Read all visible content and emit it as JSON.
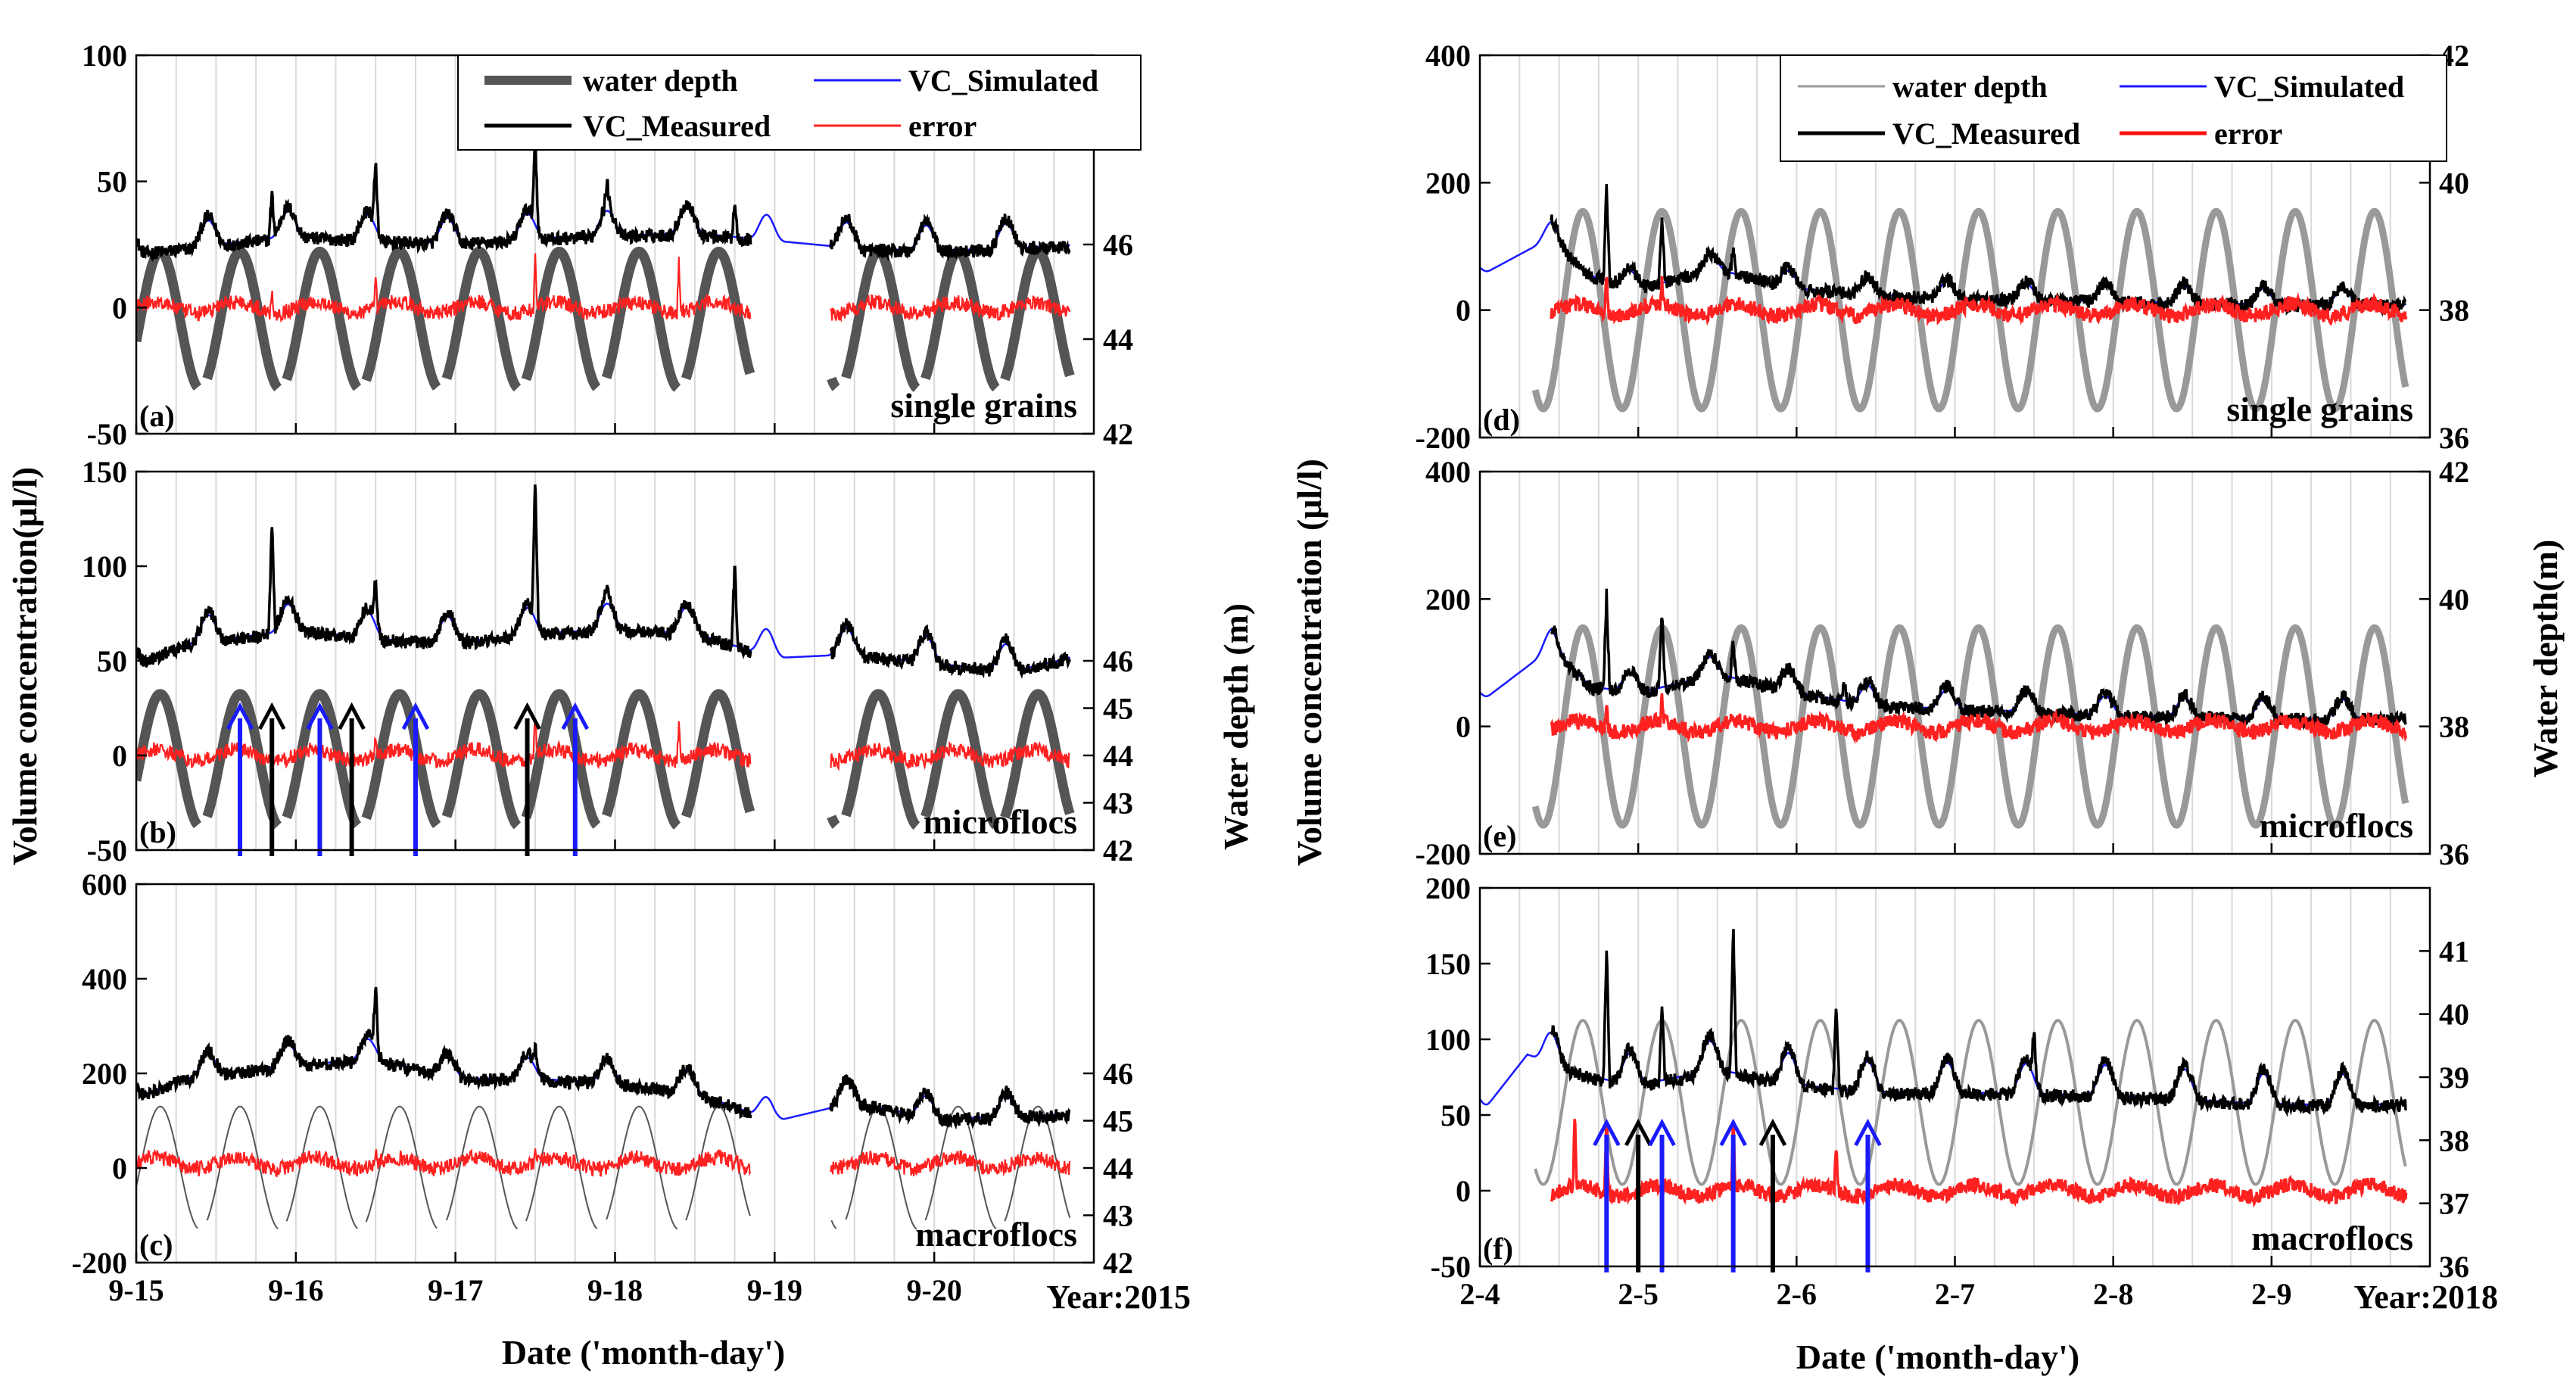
{
  "figure": {
    "left_ylabel_2015": "Volume concentration(μl/l)",
    "right_ylabel_2015": "Water depth (m)",
    "left_ylabel_2018": "Volume concentration (μl/l)",
    "right_ylabel_2018": "Water depth(m)",
    "xlabel_2015": "Date ('month-day')",
    "xlabel_2018": "Date ('month-day')",
    "year_2015": "Year:2015",
    "year_2018": "Year:2018"
  },
  "legend_2015": [
    {
      "key": "depth",
      "label": "water depth",
      "color": "#555555"
    },
    {
      "key": "sim",
      "label": "VC_Simulated",
      "color": "#1a1aff"
    },
    {
      "key": "meas",
      "label": "VC_Measured",
      "color": "#000000"
    },
    {
      "key": "err",
      "label": "error",
      "color": "#ff2020"
    }
  ],
  "legend_2018": [
    {
      "key": "depth",
      "label": "water depth",
      "color": "#999999"
    },
    {
      "key": "sim",
      "label": "VC_Simulated",
      "color": "#1a1aff"
    },
    {
      "key": "meas",
      "label": "VC_Measured",
      "color": "#000000"
    },
    {
      "key": "err",
      "label": "error",
      "color": "#ff1010"
    }
  ],
  "chart_data": [
    {
      "type": "line",
      "id": "a",
      "panel_label": "(a)",
      "title": "single grains",
      "x_range": [
        0,
        6
      ],
      "x_ticks": [
        0,
        1,
        2,
        3,
        4,
        5
      ],
      "x_tick_labels": [
        "9-15",
        "9-16",
        "9-17",
        "9-18",
        "9-19",
        "9-20"
      ],
      "show_x_tick_labels": false,
      "ylim": [
        -50,
        100
      ],
      "y_ticks": [
        -50,
        0,
        50,
        100
      ],
      "y2lim": [
        42,
        50
      ],
      "y2_ticks": [
        42,
        44,
        46
      ],
      "gap": [
        3.85,
        4.35
      ],
      "baseline_points": [
        [
          0,
          24
        ],
        [
          0.3,
          26
        ],
        [
          1,
          31
        ],
        [
          1.5,
          29
        ],
        [
          2,
          28
        ],
        [
          2.5,
          30
        ],
        [
          3,
          31
        ],
        [
          3.5,
          32
        ],
        [
          4,
          29
        ],
        [
          4.5,
          26
        ],
        [
          5,
          25
        ],
        [
          5.5,
          26
        ],
        [
          5.85,
          27
        ]
      ],
      "tidal_bump": 10,
      "meas_spikes": [
        [
          0.85,
          18
        ],
        [
          1.5,
          25
        ],
        [
          2.5,
          35
        ],
        [
          2.95,
          10
        ],
        [
          3.75,
          15
        ]
      ],
      "error_level": 0,
      "error_spikes": [
        [
          0.85,
          10
        ],
        [
          1.5,
          10
        ],
        [
          2.5,
          20
        ],
        [
          3.4,
          20
        ]
      ],
      "depth": {
        "mean": 44.4,
        "amp": 1.45,
        "thick": 13,
        "color": "#555555",
        "dashed": true
      },
      "arrows": []
    },
    {
      "type": "line",
      "id": "b",
      "panel_label": "(b)",
      "title": "microflocs",
      "x_range": [
        0,
        6
      ],
      "x_ticks": [
        0,
        1,
        2,
        3,
        4,
        5
      ],
      "x_tick_labels": [
        "9-15",
        "9-16",
        "9-17",
        "9-18",
        "9-19",
        "9-20"
      ],
      "show_x_tick_labels": false,
      "ylim": [
        -50,
        150
      ],
      "y_ticks": [
        -50,
        0,
        50,
        100,
        150
      ],
      "y2lim": [
        42,
        50
      ],
      "y2_ticks": [
        42,
        43,
        44,
        45,
        46
      ],
      "gap": [
        3.85,
        4.35
      ],
      "baseline_points": [
        [
          0,
          52
        ],
        [
          0.3,
          62
        ],
        [
          1,
          70
        ],
        [
          1.5,
          65
        ],
        [
          2,
          63
        ],
        [
          2.5,
          68
        ],
        [
          3,
          70
        ],
        [
          3.5,
          68
        ],
        [
          4,
          55
        ],
        [
          4.5,
          57
        ],
        [
          5,
          52
        ],
        [
          5.5,
          48
        ],
        [
          5.85,
          55
        ]
      ],
      "tidal_bump": 14,
      "meas_spikes": [
        [
          0.85,
          60
        ],
        [
          1.5,
          25
        ],
        [
          2.5,
          75
        ],
        [
          2.95,
          10
        ],
        [
          3.75,
          45
        ]
      ],
      "error_level": 0,
      "error_spikes": [
        [
          0.85,
          12
        ],
        [
          1.5,
          12
        ],
        [
          2.5,
          20
        ],
        [
          3.4,
          20
        ]
      ],
      "depth": {
        "mean": 43.9,
        "amp": 1.4,
        "thick": 13,
        "color": "#555555",
        "dashed": true
      },
      "arrows": [
        {
          "x": 0.65,
          "color": "blue"
        },
        {
          "x": 0.85,
          "color": "black"
        },
        {
          "x": 1.15,
          "color": "blue"
        },
        {
          "x": 1.35,
          "color": "black"
        },
        {
          "x": 1.75,
          "color": "blue"
        },
        {
          "x": 2.45,
          "color": "black"
        },
        {
          "x": 2.75,
          "color": "blue"
        }
      ]
    },
    {
      "type": "line",
      "id": "c",
      "panel_label": "(c)",
      "title": "macroflocs",
      "x_range": [
        0,
        6
      ],
      "x_ticks": [
        0,
        1,
        2,
        3,
        4,
        5
      ],
      "x_tick_labels": [
        "9-15",
        "9-16",
        "9-17",
        "9-18",
        "9-19",
        "9-20"
      ],
      "show_x_tick_labels": true,
      "ylim": [
        -200,
        600
      ],
      "y_ticks": [
        -200,
        0,
        200,
        400,
        600
      ],
      "y2lim": [
        42,
        50
      ],
      "y2_ticks": [
        42,
        43,
        44,
        45,
        46
      ],
      "gap": [
        3.85,
        4.35
      ],
      "baseline_points": [
        [
          0,
          160
        ],
        [
          0.3,
          200
        ],
        [
          1,
          230
        ],
        [
          1.5,
          240
        ],
        [
          2,
          200
        ],
        [
          2.5,
          200
        ],
        [
          3,
          190
        ],
        [
          3.5,
          170
        ],
        [
          4,
          110
        ],
        [
          4.5,
          150
        ],
        [
          5,
          115
        ],
        [
          5.5,
          120
        ],
        [
          5.85,
          125
        ]
      ],
      "tidal_bump": 45,
      "meas_spikes": [
        [
          1.5,
          130
        ],
        [
          2.5,
          40
        ]
      ],
      "error_level": 10,
      "error_spikes": [
        [
          1.5,
          20
        ],
        [
          2.5,
          25
        ]
      ],
      "depth": {
        "mean": 44.0,
        "amp": 1.3,
        "thick": 2,
        "color": "#555555",
        "dashed": true
      },
      "arrows": []
    },
    {
      "type": "line",
      "id": "d",
      "panel_label": "(d)",
      "title": "single grains",
      "x_range": [
        0,
        6
      ],
      "x_ticks": [
        0,
        1,
        2,
        3,
        4,
        5
      ],
      "x_tick_labels": [
        "2-4",
        "2-5",
        "2-6",
        "2-7",
        "2-8",
        "2-9"
      ],
      "show_x_tick_labels": false,
      "ylim": [
        -200,
        400
      ],
      "y_ticks": [
        -200,
        0,
        200,
        400
      ],
      "y2lim": [
        36,
        42
      ],
      "y2_ticks": [
        36,
        38,
        40,
        42
      ],
      "gap": null,
      "baseline_points": [
        [
          0,
          60
        ],
        [
          0.45,
          120
        ],
        [
          0.7,
          60
        ],
        [
          1,
          40
        ],
        [
          1.5,
          70
        ],
        [
          2,
          40
        ],
        [
          2.5,
          30
        ],
        [
          3,
          25
        ],
        [
          4,
          20
        ],
        [
          5,
          15
        ],
        [
          5.85,
          15
        ]
      ],
      "tidal_bump": 25,
      "meas_spikes": [
        [
          0.8,
          150
        ],
        [
          1.15,
          110
        ],
        [
          1.6,
          40
        ]
      ],
      "error_level": 0,
      "error_spikes": [
        [
          0.8,
          60
        ],
        [
          1.15,
          50
        ]
      ],
      "depth": {
        "mean": 38.0,
        "amp": 1.55,
        "thick": 9,
        "color": "#999999",
        "dashed": false
      },
      "arrows": []
    },
    {
      "type": "line",
      "id": "e",
      "panel_label": "(e)",
      "title": "microflocs",
      "x_range": [
        0,
        6
      ],
      "x_ticks": [
        0,
        1,
        2,
        3,
        4,
        5
      ],
      "x_tick_labels": [
        "2-4",
        "2-5",
        "2-6",
        "2-7",
        "2-8",
        "2-9"
      ],
      "show_x_tick_labels": false,
      "ylim": [
        -200,
        400
      ],
      "y_ticks": [
        -200,
        0,
        200,
        400
      ],
      "y2lim": [
        36,
        42
      ],
      "y2_ticks": [
        36,
        38,
        40,
        42
      ],
      "gap": null,
      "baseline_points": [
        [
          0,
          45
        ],
        [
          0.45,
          130
        ],
        [
          0.7,
          70
        ],
        [
          1,
          60
        ],
        [
          1.5,
          90
        ],
        [
          2,
          60
        ],
        [
          2.5,
          40
        ],
        [
          3,
          35
        ],
        [
          4,
          25
        ],
        [
          5,
          20
        ],
        [
          5.85,
          20
        ]
      ],
      "tidal_bump": 30,
      "meas_spikes": [
        [
          0.8,
          150
        ],
        [
          1.15,
          120
        ],
        [
          1.6,
          60
        ],
        [
          2.3,
          30
        ]
      ],
      "error_level": 0,
      "error_spikes": [
        [
          0.8,
          50
        ],
        [
          1.15,
          50
        ]
      ],
      "depth": {
        "mean": 38.0,
        "amp": 1.55,
        "thick": 9,
        "color": "#999999",
        "dashed": false
      },
      "arrows": []
    },
    {
      "type": "line",
      "id": "f",
      "panel_label": "(f)",
      "title": "macroflocs",
      "x_range": [
        0,
        6
      ],
      "x_ticks": [
        0,
        1,
        2,
        3,
        4,
        5
      ],
      "x_tick_labels": [
        "2-4",
        "2-5",
        "2-6",
        "2-7",
        "2-8",
        "2-9"
      ],
      "show_x_tick_labels": true,
      "ylim": [
        -50,
        200
      ],
      "y_ticks": [
        -50,
        0,
        50,
        100,
        150,
        200
      ],
      "y2lim": [
        36,
        42
      ],
      "y2_ticks": [
        36,
        37,
        38,
        39,
        40,
        41
      ],
      "gap": null,
      "baseline_points": [
        [
          0,
          55
        ],
        [
          0.3,
          95
        ],
        [
          0.7,
          80
        ],
        [
          1,
          75
        ],
        [
          1.5,
          85
        ],
        [
          2,
          75
        ],
        [
          2.5,
          70
        ],
        [
          3,
          70
        ],
        [
          4,
          68
        ],
        [
          5,
          62
        ],
        [
          5.85,
          62
        ]
      ],
      "tidal_bump": 20,
      "meas_spikes": [
        [
          0.8,
          90
        ],
        [
          1.15,
          50
        ],
        [
          1.6,
          100
        ],
        [
          2.25,
          60
        ],
        [
          3.5,
          30
        ]
      ],
      "error_level": 0,
      "error_spikes": [
        [
          0.6,
          50
        ],
        [
          0.8,
          60
        ],
        [
          1.6,
          50
        ],
        [
          2.25,
          30
        ]
      ],
      "depth": {
        "mean": 38.6,
        "amp": 1.3,
        "thick": 4,
        "color": "#999999",
        "dashed": false
      },
      "arrows": [
        {
          "x": 0.8,
          "color": "blue"
        },
        {
          "x": 1.0,
          "color": "black"
        },
        {
          "x": 1.15,
          "color": "blue"
        },
        {
          "x": 1.6,
          "color": "blue"
        },
        {
          "x": 1.85,
          "color": "black"
        },
        {
          "x": 2.45,
          "color": "blue"
        }
      ]
    }
  ]
}
